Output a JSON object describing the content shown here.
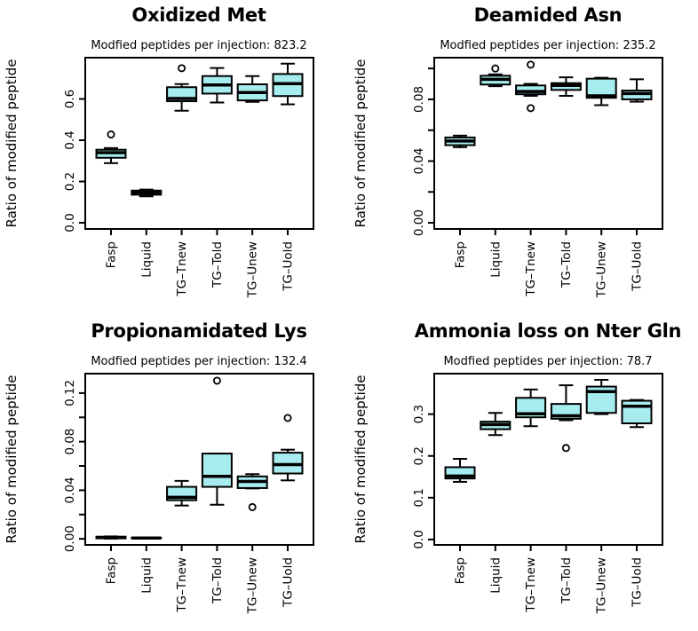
{
  "figure": {
    "background": "#ffffff",
    "box_fill": "#A7EDEF",
    "line_color": "#000000",
    "outlier_fill": "#ffffff"
  },
  "chart_data": [
    {
      "type": "boxplot",
      "title": "Oxidized Met",
      "subtitle": "Modfied peptides per injection: 823.2",
      "ylabel": "Ratio of modified peptide",
      "categories": [
        "Fasp",
        "Liquid",
        "TG–Tnew",
        "TG–Told",
        "TG–Unew",
        "TG–Uold"
      ],
      "ylim": [
        -0.03,
        0.8
      ],
      "yticks": [
        {
          "value": 0.0,
          "label": "0.0"
        },
        {
          "value": 0.2,
          "label": "0.2"
        },
        {
          "value": 0.4,
          "label": "0.4"
        },
        {
          "value": 0.6,
          "label": "0.6"
        }
      ],
      "boxes": [
        {
          "category": "Fasp",
          "whisker_low": 0.289,
          "q1": 0.315,
          "median": 0.34,
          "q3": 0.354,
          "whisker_high": 0.362,
          "outliers": [
            0.428
          ]
        },
        {
          "category": "Liquid",
          "whisker_low": 0.128,
          "q1": 0.136,
          "median": 0.146,
          "q3": 0.156,
          "whisker_high": 0.161,
          "outliers": []
        },
        {
          "category": "TG-Tnew",
          "whisker_low": 0.543,
          "q1": 0.589,
          "median": 0.602,
          "q3": 0.657,
          "whisker_high": 0.672,
          "outliers": [
            0.749
          ]
        },
        {
          "category": "TG-Told",
          "whisker_low": 0.583,
          "q1": 0.626,
          "median": 0.668,
          "q3": 0.711,
          "whisker_high": 0.75,
          "outliers": []
        },
        {
          "category": "TG-Unew",
          "whisker_low": 0.586,
          "q1": 0.593,
          "median": 0.631,
          "q3": 0.671,
          "whisker_high": 0.711,
          "outliers": []
        },
        {
          "category": "TG-Uold",
          "whisker_low": 0.574,
          "q1": 0.614,
          "median": 0.674,
          "q3": 0.721,
          "whisker_high": 0.771,
          "outliers": []
        }
      ]
    },
    {
      "type": "boxplot",
      "title": "Deamided Asn",
      "subtitle": "Modfied peptides per injection: 235.2",
      "ylabel": "Ratio of modified peptide",
      "categories": [
        "Fasp",
        "Liquid",
        "TG–Tnew",
        "TG–Told",
        "TG–Unew",
        "TG–Uold"
      ],
      "ylim": [
        -0.004,
        0.107
      ],
      "yticks": [
        {
          "value": 0.0,
          "label": "0.00"
        },
        {
          "value": 0.02,
          "label": ""
        },
        {
          "value": 0.04,
          "label": "0.04"
        },
        {
          "value": 0.06,
          "label": ""
        },
        {
          "value": 0.08,
          "label": "0.08"
        },
        {
          "value": 0.1,
          "label": ""
        }
      ],
      "boxes": [
        {
          "category": "Fasp",
          "whisker_low": 0.049,
          "q1": 0.0503,
          "median": 0.053,
          "q3": 0.0553,
          "whisker_high": 0.0565,
          "outliers": []
        },
        {
          "category": "Liquid",
          "whisker_low": 0.0885,
          "q1": 0.0896,
          "median": 0.093,
          "q3": 0.0953,
          "whisker_high": 0.0962,
          "outliers": [
            0.1
          ]
        },
        {
          "category": "TG-Tnew",
          "whisker_low": 0.0823,
          "q1": 0.0833,
          "median": 0.0851,
          "q3": 0.089,
          "whisker_high": 0.09,
          "outliers": [
            0.1025,
            0.0743
          ]
        },
        {
          "category": "TG-Told",
          "whisker_low": 0.0823,
          "q1": 0.0861,
          "median": 0.089,
          "q3": 0.0905,
          "whisker_high": 0.0943,
          "outliers": []
        },
        {
          "category": "TG-Unew",
          "whisker_low": 0.0762,
          "q1": 0.081,
          "median": 0.0823,
          "q3": 0.0934,
          "whisker_high": 0.094,
          "outliers": []
        },
        {
          "category": "TG-Uold",
          "whisker_low": 0.0785,
          "q1": 0.08,
          "median": 0.0838,
          "q3": 0.0857,
          "whisker_high": 0.093,
          "outliers": []
        }
      ]
    },
    {
      "type": "boxplot",
      "title": "Propionamidated Lys",
      "subtitle": "Modfied peptides per injection: 132.4",
      "ylabel": "Ratio of modified peptide",
      "categories": [
        "Fasp",
        "Liquid",
        "TG–Tnew",
        "TG–Told",
        "TG–Unew",
        "TG–Uold"
      ],
      "ylim": [
        -0.005,
        0.136
      ],
      "yticks": [
        {
          "value": 0.0,
          "label": "0.00"
        },
        {
          "value": 0.02,
          "label": ""
        },
        {
          "value": 0.04,
          "label": "0.04"
        },
        {
          "value": 0.06,
          "label": ""
        },
        {
          "value": 0.08,
          "label": "0.08"
        },
        {
          "value": 0.1,
          "label": ""
        },
        {
          "value": 0.12,
          "label": "0.12"
        }
      ],
      "boxes": [
        {
          "category": "Fasp",
          "whisker_low": 0.0002,
          "q1": 0.0004,
          "median": 0.001,
          "q3": 0.0018,
          "whisker_high": 0.002,
          "outliers": []
        },
        {
          "category": "Liquid",
          "whisker_low": 0.0005,
          "q1": 0.0006,
          "median": 0.0007,
          "q3": 0.0009,
          "whisker_high": 0.001,
          "outliers": []
        },
        {
          "category": "TG-Tnew",
          "whisker_low": 0.0274,
          "q1": 0.0318,
          "median": 0.0342,
          "q3": 0.0428,
          "whisker_high": 0.0477,
          "outliers": []
        },
        {
          "category": "TG-Told",
          "whisker_low": 0.0281,
          "q1": 0.0428,
          "median": 0.0514,
          "q3": 0.0702,
          "whisker_high": 0.0702,
          "outliers": [
            0.1302
          ]
        },
        {
          "category": "TG-Unew",
          "whisker_low": 0.0415,
          "q1": 0.0418,
          "median": 0.0472,
          "q3": 0.0514,
          "whisker_high": 0.0533,
          "outliers": [
            0.0261
          ]
        },
        {
          "category": "TG-Uold",
          "whisker_low": 0.0481,
          "q1": 0.0538,
          "median": 0.0611,
          "q3": 0.0709,
          "whisker_high": 0.0734,
          "outliers": [
            0.0995
          ]
        }
      ]
    },
    {
      "type": "boxplot",
      "title": "Ammonia loss on Nter Gln",
      "subtitle": "Modfied peptides per injection: 78.7",
      "ylabel": "Ratio of modified peptide",
      "categories": [
        "Fasp",
        "Liquid",
        "TG–Tnew",
        "TG–Told",
        "TG–Unew",
        "TG–Uold"
      ],
      "ylim": [
        -0.013,
        0.397
      ],
      "yticks": [
        {
          "value": 0.0,
          "label": "0.0"
        },
        {
          "value": 0.1,
          "label": "0.1"
        },
        {
          "value": 0.2,
          "label": "0.2"
        },
        {
          "value": 0.3,
          "label": "0.3"
        }
      ],
      "boxes": [
        {
          "category": "Fasp",
          "whisker_low": 0.138,
          "q1": 0.146,
          "median": 0.152,
          "q3": 0.173,
          "whisker_high": 0.193,
          "outliers": []
        },
        {
          "category": "Liquid",
          "whisker_low": 0.25,
          "q1": 0.264,
          "median": 0.275,
          "q3": 0.282,
          "whisker_high": 0.303,
          "outliers": []
        },
        {
          "category": "TG-Tnew",
          "whisker_low": 0.271,
          "q1": 0.2925,
          "median": 0.301,
          "q3": 0.339,
          "whisker_high": 0.359,
          "outliers": []
        },
        {
          "category": "TG-Told",
          "whisker_low": 0.2855,
          "q1": 0.289,
          "median": 0.296,
          "q3": 0.3245,
          "whisker_high": 0.369,
          "outliers": [
            0.219
          ]
        },
        {
          "category": "TG-Unew",
          "whisker_low": 0.3,
          "q1": 0.303,
          "median": 0.354,
          "q3": 0.366,
          "whisker_high": 0.382,
          "outliers": []
        },
        {
          "category": "TG-Uold",
          "whisker_low": 0.269,
          "q1": 0.278,
          "median": 0.319,
          "q3": 0.332,
          "whisker_high": 0.334,
          "outliers": []
        }
      ]
    }
  ]
}
